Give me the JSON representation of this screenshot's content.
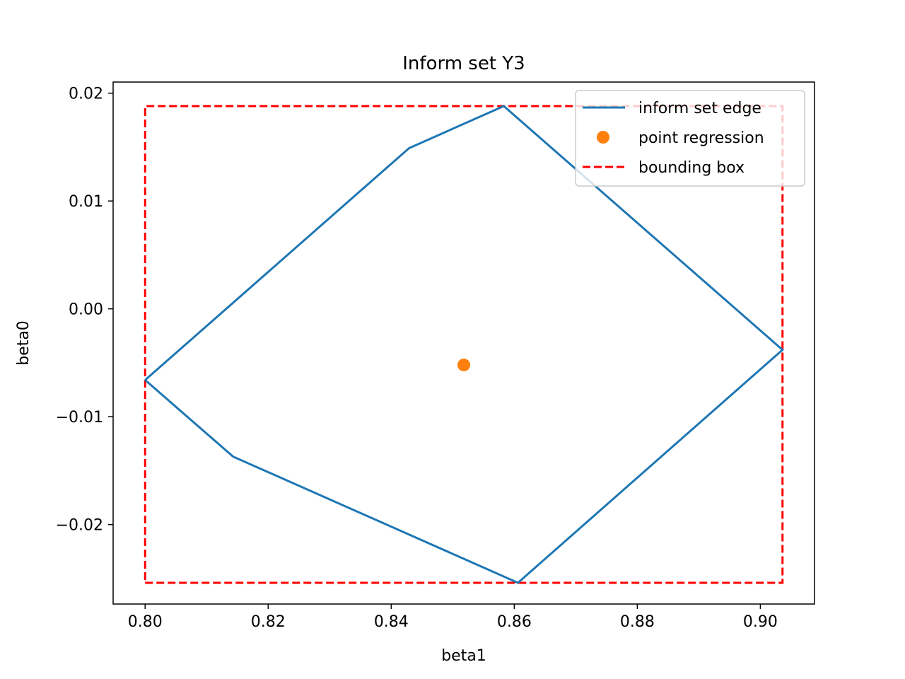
{
  "chart_data": {
    "type": "line",
    "title": "Inform set Y3",
    "xlabel": "beta1",
    "ylabel": "beta0",
    "xlim": [
      0.7948,
      0.9088
    ],
    "ylim": [
      -0.02737,
      0.02103
    ],
    "xticks": [
      0.8,
      0.82,
      0.84,
      0.86,
      0.88,
      0.9
    ],
    "xtick_labels": [
      "0.80",
      "0.82",
      "0.84",
      "0.86",
      "0.88",
      "0.90"
    ],
    "yticks": [
      -0.02,
      -0.01,
      0.0,
      0.01,
      0.02
    ],
    "ytick_labels": [
      "−0.02",
      "−0.01",
      "0.00",
      "0.01",
      "0.02"
    ],
    "grid": false,
    "legend_position": "top-right",
    "series": [
      {
        "name": "inform set edge",
        "kind": "line",
        "style": "solid",
        "color": "#1f77b4",
        "points": [
          [
            0.8,
            -0.0066
          ],
          [
            0.8143,
            -0.0137
          ],
          [
            0.8606,
            -0.0254
          ],
          [
            0.9036,
            -0.0038
          ],
          [
            0.8583,
            0.0188
          ],
          [
            0.8429,
            0.0149
          ],
          [
            0.8,
            -0.0066
          ]
        ]
      },
      {
        "name": "point regression",
        "kind": "point",
        "color": "#ff7f0e",
        "points": [
          [
            0.8518,
            -0.0052
          ]
        ]
      },
      {
        "name": "bounding box",
        "kind": "line",
        "style": "dashed",
        "color": "#ff0000",
        "points": [
          [
            0.8,
            -0.0254
          ],
          [
            0.9036,
            -0.0254
          ],
          [
            0.9036,
            0.0188
          ],
          [
            0.8,
            0.0188
          ],
          [
            0.8,
            -0.0254
          ]
        ]
      }
    ]
  }
}
